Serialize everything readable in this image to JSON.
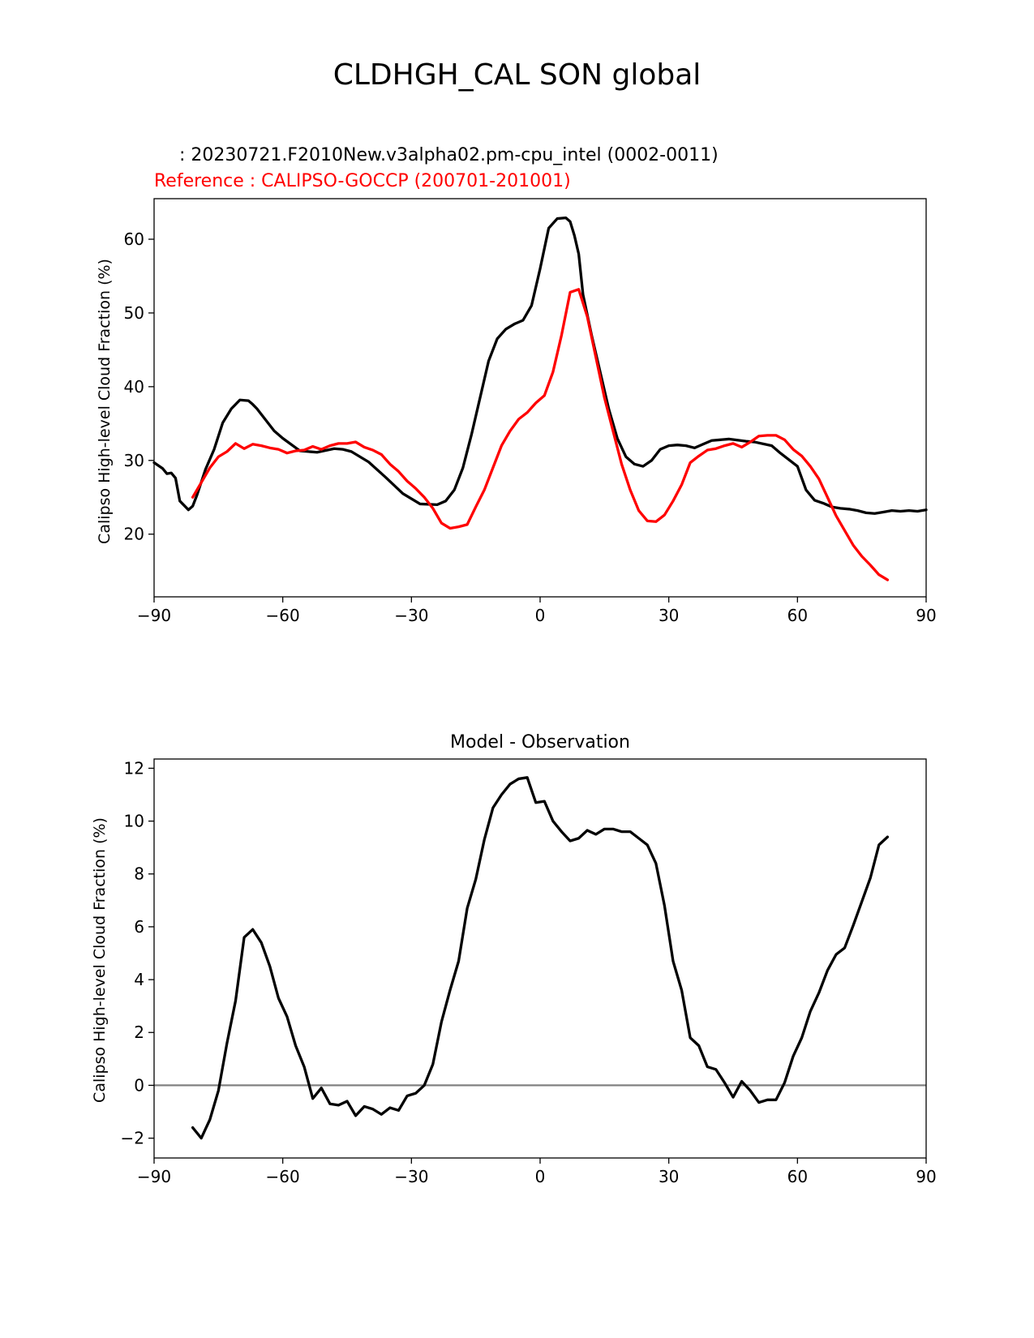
{
  "title": "CLDHGH_CAL SON global",
  "colors": {
    "model": "#000000",
    "reference": "#ff0000",
    "zero_line": "#808080"
  },
  "chart_data": [
    {
      "type": "line",
      "test_label": "  : 20230721.F2010New.v3alpha02.pm-cpu_intel (0002-0011)",
      "ref_label": "Reference : CALIPSO-GOCCP (200701-201001)",
      "xlabel": "",
      "ylabel": "Calipso High-level Cloud Fraction (%)",
      "xlim": [
        -90,
        90
      ],
      "ylim": [
        11.5,
        65.5
      ],
      "xticks": [
        -90,
        -60,
        -30,
        0,
        30,
        60,
        90
      ],
      "xtick_labels": [
        "−90",
        "−60",
        "−30",
        "0",
        "30",
        "60",
        "90"
      ],
      "yticks": [
        20,
        30,
        40,
        50,
        60
      ],
      "ytick_labels": [
        "20",
        "30",
        "40",
        "50",
        "60"
      ],
      "series": [
        {
          "name": "model",
          "x": [
            -90,
            -88,
            -87,
            -86,
            -85,
            -84,
            -82,
            -81,
            -80,
            -78,
            -76,
            -74,
            -72,
            -70,
            -68,
            -67,
            -66,
            -64,
            -62,
            -60,
            -56,
            -52,
            -48,
            -46,
            -44,
            -40,
            -36,
            -32,
            -28,
            -24,
            -22,
            -20,
            -18,
            -16,
            -14,
            -12,
            -10,
            -8,
            -6,
            -4,
            -2,
            0,
            2,
            4,
            6,
            7,
            8,
            9,
            10,
            12,
            14,
            16,
            18,
            20,
            22,
            24,
            26,
            28,
            30,
            32,
            34,
            36,
            38,
            40,
            44,
            48,
            50,
            54,
            56,
            60,
            62,
            64,
            66,
            68,
            70,
            72,
            74,
            76,
            78,
            80,
            82,
            84,
            86,
            88,
            90
          ],
          "y": [
            29.7,
            28.9,
            28.2,
            28.3,
            27.6,
            24.5,
            23.3,
            23.8,
            25.3,
            28.8,
            31.5,
            35.1,
            37.0,
            38.2,
            38.1,
            37.6,
            37.0,
            35.5,
            34.0,
            33.0,
            31.3,
            31.1,
            31.6,
            31.5,
            31.2,
            29.8,
            27.7,
            25.5,
            24.1,
            24.0,
            24.5,
            26.0,
            29.0,
            33.5,
            38.5,
            43.5,
            46.5,
            47.8,
            48.5,
            49.0,
            51.0,
            56.0,
            61.5,
            62.8,
            62.9,
            62.4,
            60.5,
            58.0,
            52.5,
            47.0,
            42.0,
            37.0,
            33.0,
            30.5,
            29.5,
            29.2,
            30.0,
            31.5,
            32.0,
            32.1,
            32.0,
            31.7,
            32.2,
            32.7,
            32.9,
            32.6,
            32.5,
            32.0,
            31.0,
            29.2,
            26.0,
            24.6,
            24.2,
            23.7,
            23.5,
            23.4,
            23.2,
            22.9,
            22.8,
            23.0,
            23.2,
            23.1,
            23.2,
            23.1,
            23.3
          ]
        },
        {
          "name": "reference",
          "x": [
            -81,
            -79,
            -77,
            -75,
            -73,
            -71,
            -69,
            -67,
            -65,
            -63,
            -61,
            -59,
            -57,
            -55,
            -53,
            -51,
            -49,
            -47,
            -45,
            -43,
            -41,
            -39,
            -37,
            -35,
            -33,
            -31,
            -29,
            -27,
            -25,
            -23,
            -21,
            -19,
            -17,
            -15,
            -13,
            -11,
            -9,
            -7,
            -5,
            -3,
            -1,
            1,
            3,
            5,
            7,
            9,
            11,
            13,
            15,
            17,
            19,
            21,
            23,
            25,
            27,
            29,
            31,
            33,
            35,
            37,
            39,
            41,
            43,
            45,
            47,
            49,
            51,
            53,
            55,
            57,
            59,
            61,
            63,
            65,
            67,
            69,
            71,
            73,
            75,
            77,
            79,
            81
          ],
          "y": [
            25.0,
            27.0,
            29.0,
            30.5,
            31.2,
            32.3,
            31.6,
            32.2,
            32.0,
            31.7,
            31.5,
            31.0,
            31.3,
            31.4,
            31.9,
            31.5,
            32.0,
            32.3,
            32.3,
            32.5,
            31.8,
            31.4,
            30.8,
            29.5,
            28.5,
            27.2,
            26.2,
            25.0,
            23.5,
            21.5,
            20.8,
            21.0,
            21.3,
            23.7,
            26.0,
            29.0,
            32.0,
            34.0,
            35.6,
            36.5,
            37.8,
            38.8,
            42.0,
            47.0,
            52.8,
            53.2,
            49.5,
            44.0,
            38.5,
            34.0,
            29.5,
            26.0,
            23.2,
            21.8,
            21.7,
            22.6,
            24.5,
            26.7,
            29.7,
            30.6,
            31.4,
            31.6,
            32.0,
            32.3,
            31.8,
            32.5,
            33.3,
            33.4,
            33.4,
            32.8,
            31.5,
            30.6,
            29.2,
            27.5,
            25.0,
            22.5,
            20.5,
            18.5,
            17.0,
            15.8,
            14.5,
            13.8
          ]
        }
      ]
    },
    {
      "type": "line",
      "title": "Model - Observation",
      "xlabel": "",
      "ylabel": "Calipso High-level Cloud Fraction (%)",
      "xlim": [
        -90,
        90
      ],
      "ylim": [
        -2.75,
        12.35
      ],
      "xticks": [
        -90,
        -60,
        -30,
        0,
        30,
        60,
        90
      ],
      "xtick_labels": [
        "−90",
        "−60",
        "−30",
        "0",
        "30",
        "60",
        "90"
      ],
      "yticks": [
        -2,
        0,
        2,
        4,
        6,
        8,
        10,
        12
      ],
      "ytick_labels": [
        "−2",
        "0",
        "2",
        "4",
        "6",
        "8",
        "10",
        "12"
      ],
      "zero_line": 0,
      "series": [
        {
          "name": "difference",
          "x": [
            -81,
            -79,
            -77,
            -75,
            -73,
            -71,
            -69,
            -67,
            -65,
            -63,
            -61,
            -59,
            -57,
            -55,
            -53,
            -51,
            -49,
            -47,
            -45,
            -43,
            -41,
            -39,
            -37,
            -35,
            -33,
            -31,
            -29,
            -27,
            -25,
            -23,
            -21,
            -19,
            -17,
            -15,
            -13,
            -11,
            -9,
            -7,
            -5,
            -3,
            -1,
            1,
            3,
            5,
            7,
            9,
            11,
            13,
            15,
            17,
            19,
            21,
            23,
            25,
            27,
            29,
            31,
            33,
            35,
            37,
            39,
            41,
            43,
            45,
            47,
            49,
            51,
            53,
            55,
            57,
            59,
            61,
            63,
            65,
            67,
            69,
            71,
            73,
            75,
            77,
            79,
            81
          ],
          "y": [
            -1.6,
            -2.0,
            -1.3,
            -0.2,
            1.6,
            3.2,
            5.6,
            5.9,
            5.4,
            4.5,
            3.3,
            2.6,
            1.5,
            0.7,
            -0.5,
            -0.1,
            -0.7,
            -0.75,
            -0.6,
            -1.15,
            -0.8,
            -0.9,
            -1.1,
            -0.85,
            -0.95,
            -0.4,
            -0.3,
            0.0,
            0.8,
            2.4,
            3.6,
            4.7,
            6.7,
            7.8,
            9.3,
            10.5,
            11.0,
            11.4,
            11.6,
            11.65,
            10.7,
            10.75,
            10.0,
            9.6,
            9.25,
            9.35,
            9.65,
            9.5,
            9.7,
            9.7,
            9.6,
            9.6,
            9.35,
            9.1,
            8.4,
            6.8,
            4.7,
            3.6,
            1.8,
            1.5,
            0.7,
            0.6,
            0.1,
            -0.45,
            0.15,
            -0.2,
            -0.65,
            -0.55,
            -0.55,
            0.1,
            1.1,
            1.8,
            2.8,
            3.5,
            4.35,
            4.95,
            5.2,
            6.05,
            6.95,
            7.85,
            9.1,
            9.4
          ]
        }
      ]
    }
  ]
}
